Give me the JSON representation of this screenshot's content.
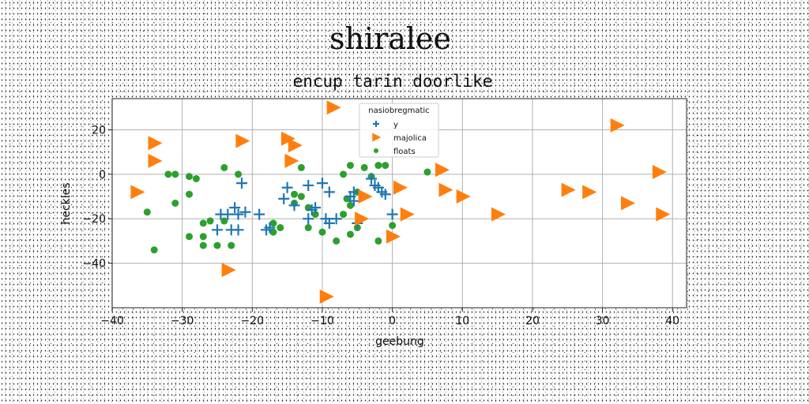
{
  "chart_data": {
    "type": "scatter",
    "suptitle": "shiralee",
    "title": "encup tarin doorlike",
    "xlabel": "geebung",
    "ylabel": "heckles",
    "xlim": [
      -40,
      42
    ],
    "ylim": [
      -60,
      34
    ],
    "xticks": [
      -40,
      -30,
      -20,
      -10,
      0,
      10,
      20,
      30,
      40
    ],
    "yticks": [
      -40,
      -20,
      0,
      20
    ],
    "grid": true,
    "legend": {
      "title": "nasiobregmatic",
      "position": "top-center"
    },
    "series": [
      {
        "name": "y",
        "marker": "plus",
        "color": "#1f77b4",
        "points": [
          [
            -25,
            -25
          ],
          [
            -24.5,
            -18
          ],
          [
            -23.5,
            -18
          ],
          [
            -23,
            -25
          ],
          [
            -22.5,
            -15
          ],
          [
            -22,
            -25
          ],
          [
            -22,
            -18
          ],
          [
            -21.5,
            -4
          ],
          [
            -21,
            -17
          ],
          [
            -19,
            -18
          ],
          [
            -18,
            -25
          ],
          [
            -17.5,
            -24
          ],
          [
            -15.5,
            -11
          ],
          [
            -15,
            -6
          ],
          [
            -14,
            -14
          ],
          [
            -12,
            -5
          ],
          [
            -12,
            -20
          ],
          [
            -11.5,
            -16
          ],
          [
            -11,
            -15
          ],
          [
            -10,
            -4
          ],
          [
            -9.5,
            -20
          ],
          [
            -9,
            -8
          ],
          [
            -9,
            -22
          ],
          [
            -8,
            -20
          ],
          [
            -6,
            -10
          ],
          [
            -5.5,
            -8
          ],
          [
            -5.5,
            -12
          ],
          [
            -5,
            -22
          ],
          [
            -3,
            -2
          ],
          [
            -2.5,
            -5
          ],
          [
            -2,
            -6
          ],
          [
            -1.5,
            -8
          ],
          [
            -1,
            -9
          ],
          [
            0,
            -18
          ]
        ]
      },
      {
        "name": "majolica",
        "marker": "triangle-right",
        "color": "#ff7f0e",
        "points": [
          [
            -36.5,
            -8
          ],
          [
            -34,
            14
          ],
          [
            -34,
            6
          ],
          [
            -21.5,
            15
          ],
          [
            -23.5,
            -43
          ],
          [
            -15,
            16
          ],
          [
            -14,
            13
          ],
          [
            -14.5,
            6
          ],
          [
            -8.5,
            30
          ],
          [
            -9.5,
            -55
          ],
          [
            -4,
            -10
          ],
          [
            -4.5,
            -20
          ],
          [
            0,
            -28
          ],
          [
            1,
            -6
          ],
          [
            2,
            -18
          ],
          [
            7,
            2
          ],
          [
            7.5,
            -7
          ],
          [
            10,
            -10
          ],
          [
            15,
            -18
          ],
          [
            25,
            -7
          ],
          [
            28,
            -8
          ],
          [
            32,
            22
          ],
          [
            33.5,
            -13
          ],
          [
            38,
            1
          ],
          [
            38.5,
            -18
          ]
        ]
      },
      {
        "name": "floats",
        "marker": "circle",
        "color": "#2ca02c",
        "points": [
          [
            -35,
            -17
          ],
          [
            -34,
            -34
          ],
          [
            -32,
            0
          ],
          [
            -31,
            0
          ],
          [
            -31,
            -13
          ],
          [
            -29,
            -1
          ],
          [
            -29,
            -9
          ],
          [
            -29,
            -28
          ],
          [
            -28,
            -2
          ],
          [
            -27,
            -22
          ],
          [
            -27,
            -28
          ],
          [
            -27,
            -32
          ],
          [
            -26,
            -21
          ],
          [
            -25,
            -32
          ],
          [
            -24,
            3
          ],
          [
            -24,
            -21
          ],
          [
            -23,
            -32
          ],
          [
            -22,
            0
          ],
          [
            -17,
            -22
          ],
          [
            -17,
            -26
          ],
          [
            -16,
            -24
          ],
          [
            -14,
            -9
          ],
          [
            -14,
            -13
          ],
          [
            -13,
            -10
          ],
          [
            -13,
            3
          ],
          [
            -12,
            -15
          ],
          [
            -12,
            -24
          ],
          [
            -11,
            -18
          ],
          [
            -10,
            -26
          ],
          [
            -8,
            -30
          ],
          [
            -7,
            0
          ],
          [
            -7,
            -18
          ],
          [
            -6.5,
            -11
          ],
          [
            -6,
            -14
          ],
          [
            -6,
            -27
          ],
          [
            -6,
            4
          ],
          [
            -5,
            -8
          ],
          [
            -5,
            -24
          ],
          [
            -4,
            3
          ],
          [
            -3,
            -1
          ],
          [
            -2,
            4
          ],
          [
            -2,
            -30
          ],
          [
            -1,
            4
          ],
          [
            0,
            -23
          ],
          [
            5,
            1
          ]
        ]
      }
    ]
  }
}
